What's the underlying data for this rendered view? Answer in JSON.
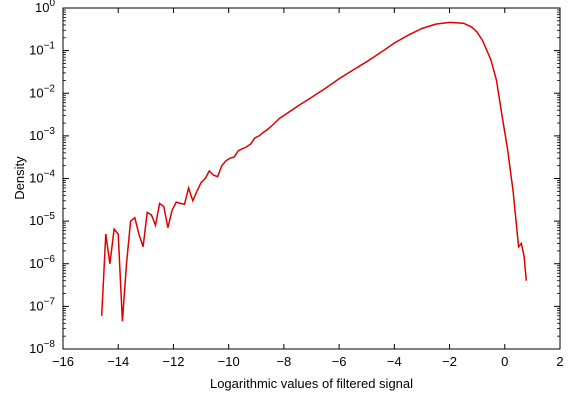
{
  "chart_data": {
    "type": "line",
    "title": "",
    "xlabel": "Logarithmic values of filtered signal",
    "ylabel": "Density",
    "xlim": [
      -16,
      2
    ],
    "ylim_log10": [
      -8,
      0
    ],
    "y_scale": "log",
    "grid": false,
    "legend": "none",
    "x_ticks": [
      -16,
      -14,
      -12,
      -10,
      -8,
      -6,
      -4,
      -2,
      0,
      2
    ],
    "y_ticks_exponents": [
      -8,
      -7,
      -6,
      -5,
      -4,
      -3,
      -2,
      -1,
      0
    ],
    "series": [
      {
        "color": "#dd0000",
        "x": [
          -14.6,
          -14.45,
          -14.3,
          -14.15,
          -14.0,
          -13.85,
          -13.7,
          -13.55,
          -13.4,
          -13.25,
          -13.1,
          -12.95,
          -12.8,
          -12.65,
          -12.5,
          -12.35,
          -12.2,
          -12.05,
          -11.9,
          -11.75,
          -11.6,
          -11.45,
          -11.3,
          -11.15,
          -11.0,
          -10.85,
          -10.7,
          -10.55,
          -10.4,
          -10.25,
          -10.1,
          -9.95,
          -9.8,
          -9.65,
          -9.5,
          -9.35,
          -9.2,
          -9.05,
          -8.9,
          -8.75,
          -8.6,
          -8.45,
          -8.3,
          -8.15,
          -8.0,
          -7.5,
          -7.0,
          -6.5,
          -6.0,
          -5.5,
          -5.0,
          -4.5,
          -4.0,
          -3.5,
          -3.0,
          -2.5,
          -2.0,
          -1.5,
          -1.2,
          -1.0,
          -0.8,
          -0.5,
          -0.3,
          -0.1,
          0.1,
          0.3,
          0.5,
          0.6,
          0.7,
          0.78
        ],
        "y": [
          6e-08,
          5e-06,
          1e-06,
          6.5e-06,
          5e-06,
          4.5e-08,
          1e-06,
          1e-05,
          1.2e-05,
          5e-06,
          2.5e-06,
          1.6e-05,
          1.4e-05,
          8e-06,
          2.6e-05,
          2.2e-05,
          7e-06,
          1.8e-05,
          2.8e-05,
          2.6e-05,
          2.5e-05,
          6e-05,
          3e-05,
          5e-05,
          8e-05,
          0.0001,
          0.00015,
          0.00012,
          0.00011,
          0.0002,
          0.00026,
          0.0003,
          0.00032,
          0.00045,
          0.0005,
          0.00055,
          0.00065,
          0.0009,
          0.001,
          0.0012,
          0.0014,
          0.0017,
          0.0021,
          0.0026,
          0.003,
          0.005,
          0.008,
          0.013,
          0.022,
          0.035,
          0.055,
          0.09,
          0.15,
          0.23,
          0.33,
          0.42,
          0.46,
          0.44,
          0.36,
          0.27,
          0.17,
          0.06,
          0.02,
          0.003,
          0.0005,
          5e-05,
          2.5e-06,
          3e-06,
          1.5e-06,
          4e-07
        ]
      }
    ]
  }
}
